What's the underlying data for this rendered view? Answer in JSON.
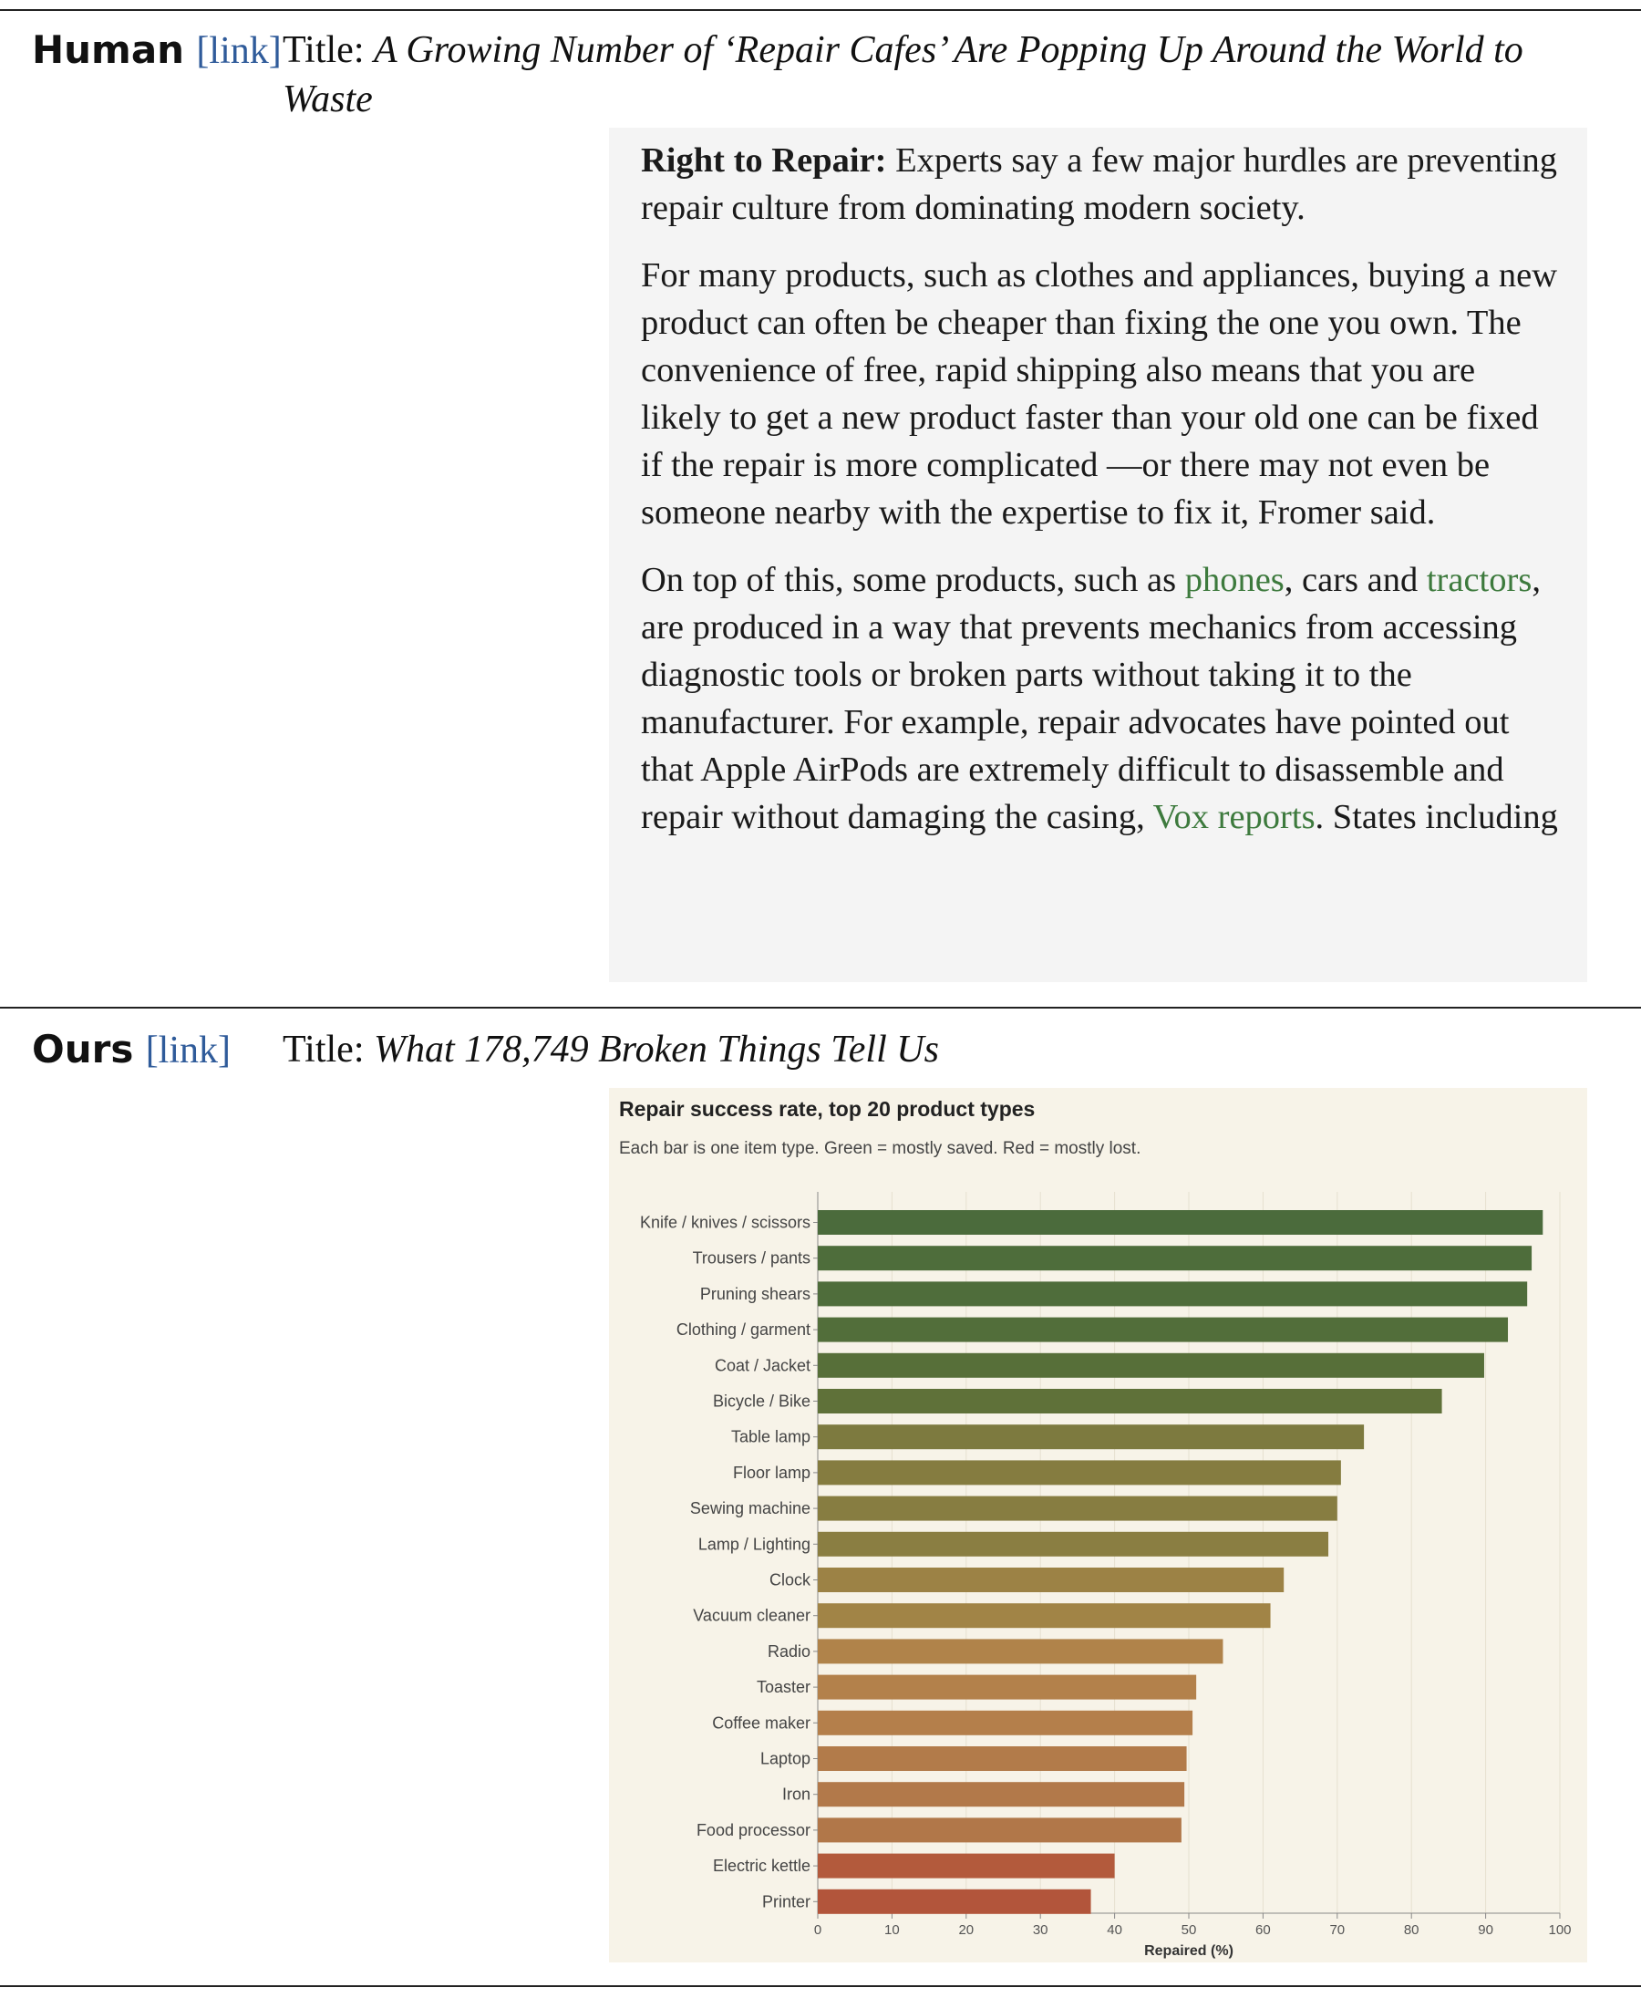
{
  "human": {
    "label": "Human",
    "link": "[link]",
    "title_prefix": "Title:",
    "title_line1": "A Growing Number of ‘Repair Cafes’ Are Popping Up Around the World to",
    "title_line2": "Waste",
    "excerpt": {
      "p1_bold": "Right to Repair:",
      "p1_rest": " Experts say a few major hurdles are preventing repair culture from dominating modern society.",
      "p2": "For many products, such as clothes and appliances, buying a new product can often be cheaper than fixing the one you own. The convenience of free, rapid shipping also means that you are likely to get a new product faster than your old one can be fixed if the repair is more complicated —or there may not even be someone nearby with the expertise to fix it, Fromer said.",
      "p3_a": "On top of this, some products, such as ",
      "p3_link1": "phones",
      "p3_b": ", cars and ",
      "p3_link2": "tractors",
      "p3_c": ", are produced in a way that prevents mechanics from accessing diagnostic tools or broken parts without taking it to the manufacturer. For example, repair advocates have pointed out that Apple AirPods are extremely difficult to disassemble and repair without damaging the casing, ",
      "p3_link3": "Vox reports",
      "p3_d": ". States including"
    }
  },
  "ours": {
    "label": "Ours",
    "link": "[link]",
    "title_prefix": "Title:",
    "title": "What 178,749 Broken Things Tell Us"
  },
  "chart_data": {
    "type": "bar",
    "orientation": "horizontal",
    "title": "Repair success rate, top 20 product types",
    "subtitle": "Each bar is one item type. Green = mostly saved. Red = mostly lost.",
    "xlabel": "Repaired (%)",
    "ylabel": "",
    "xlim": [
      0,
      100
    ],
    "xticks": [
      0,
      10,
      20,
      30,
      40,
      50,
      60,
      70,
      80,
      90,
      100
    ],
    "grid": "vertical",
    "categories": [
      "Knife / knives / scissors",
      "Trousers / pants",
      "Pruning shears",
      "Clothing / garment",
      "Coat / Jacket",
      "Bicycle / Bike",
      "Table lamp",
      "Floor lamp",
      "Sewing machine",
      "Lamp / Lighting",
      "Clock",
      "Vacuum cleaner",
      "Radio",
      "Toaster",
      "Coffee maker",
      "Laptop",
      "Iron",
      "Food processor",
      "Electric kettle",
      "Printer"
    ],
    "values": [
      97.7,
      96.2,
      95.6,
      93.0,
      89.8,
      84.1,
      73.6,
      70.5,
      70.0,
      68.8,
      62.8,
      61.0,
      54.6,
      51.0,
      50.5,
      49.7,
      49.4,
      49.0,
      40.0,
      36.8
    ],
    "colors": [
      "#4b6b3c",
      "#4e6d3b",
      "#4f6d3b",
      "#526e3a",
      "#576f39",
      "#5f7139",
      "#7d7a3f",
      "#857c40",
      "#877d41",
      "#8a7e42",
      "#9c8245",
      "#a18446",
      "#b0834a",
      "#b3814b",
      "#b47f4b",
      "#b27b4a",
      "#b2794a",
      "#b17749",
      "#b35a3c",
      "#b2553b"
    ]
  }
}
